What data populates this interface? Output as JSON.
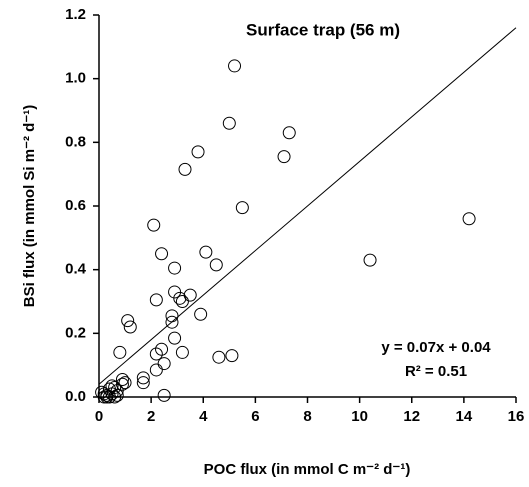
{
  "chart_data": {
    "type": "scatter",
    "title": "Surface trap (56 m)",
    "x_label": "POC flux (in mmol C m⁻² d⁻¹)",
    "y_label": "BSi flux (in mmol Si m⁻² d⁻¹)",
    "x": [
      5.2,
      5.0,
      7.3,
      7.1,
      3.8,
      3.3,
      5.5,
      2.1,
      4.1,
      2.4,
      4.5,
      2.9,
      14.2,
      10.4,
      2.9,
      3.5,
      3.2,
      3.1,
      2.2,
      3.9,
      2.8,
      2.8,
      1.1,
      1.2,
      2.9,
      0.8,
      2.4,
      3.2,
      2.2,
      4.6,
      5.1,
      2.5,
      2.2,
      1.7,
      1.7,
      0.9,
      0.9,
      1.0,
      0.6,
      0.5,
      0.7,
      0.4,
      0.5,
      0.3,
      0.2,
      0.1,
      0.2,
      0.3,
      0.6,
      0.7,
      2.5,
      0.4
    ],
    "values": [
      1.04,
      0.86,
      0.83,
      0.755,
      0.77,
      0.715,
      0.595,
      0.54,
      0.455,
      0.45,
      0.415,
      0.405,
      0.56,
      0.43,
      0.33,
      0.32,
      0.3,
      0.31,
      0.305,
      0.26,
      0.255,
      0.235,
      0.24,
      0.22,
      0.185,
      0.14,
      0.15,
      0.14,
      0.135,
      0.125,
      0.13,
      0.105,
      0.085,
      0.06,
      0.045,
      0.055,
      0.04,
      0.045,
      0.03,
      0.035,
      0.02,
      0.025,
      0.01,
      0.005,
      0.01,
      0.015,
      0.0,
      0.0,
      0.0,
      0.005,
      0.005,
      0.0
    ],
    "xlim": [
      0,
      16
    ],
    "xticks": [
      0,
      2,
      4,
      6,
      8,
      10,
      12,
      14,
      16
    ],
    "ylim": [
      0,
      1.2
    ],
    "yticks": [
      {
        "value": 0,
        "label": "0.0"
      },
      {
        "value": 0.2,
        "label": "0.2"
      },
      {
        "value": 0.4,
        "label": "0.4"
      },
      {
        "value": 0.6,
        "label": "0.6"
      },
      {
        "value": 0.8,
        "label": "0.8"
      },
      {
        "value": 1.0,
        "label": "1.0"
      },
      {
        "value": 1.2,
        "label": "1.2"
      }
    ],
    "trendline": {
      "slope": 0.07,
      "intercept": 0.04
    },
    "annotations": [
      "y = 0.07x + 0.04",
      "R² = 0.51"
    ],
    "color": "#000000",
    "grid": false
  }
}
